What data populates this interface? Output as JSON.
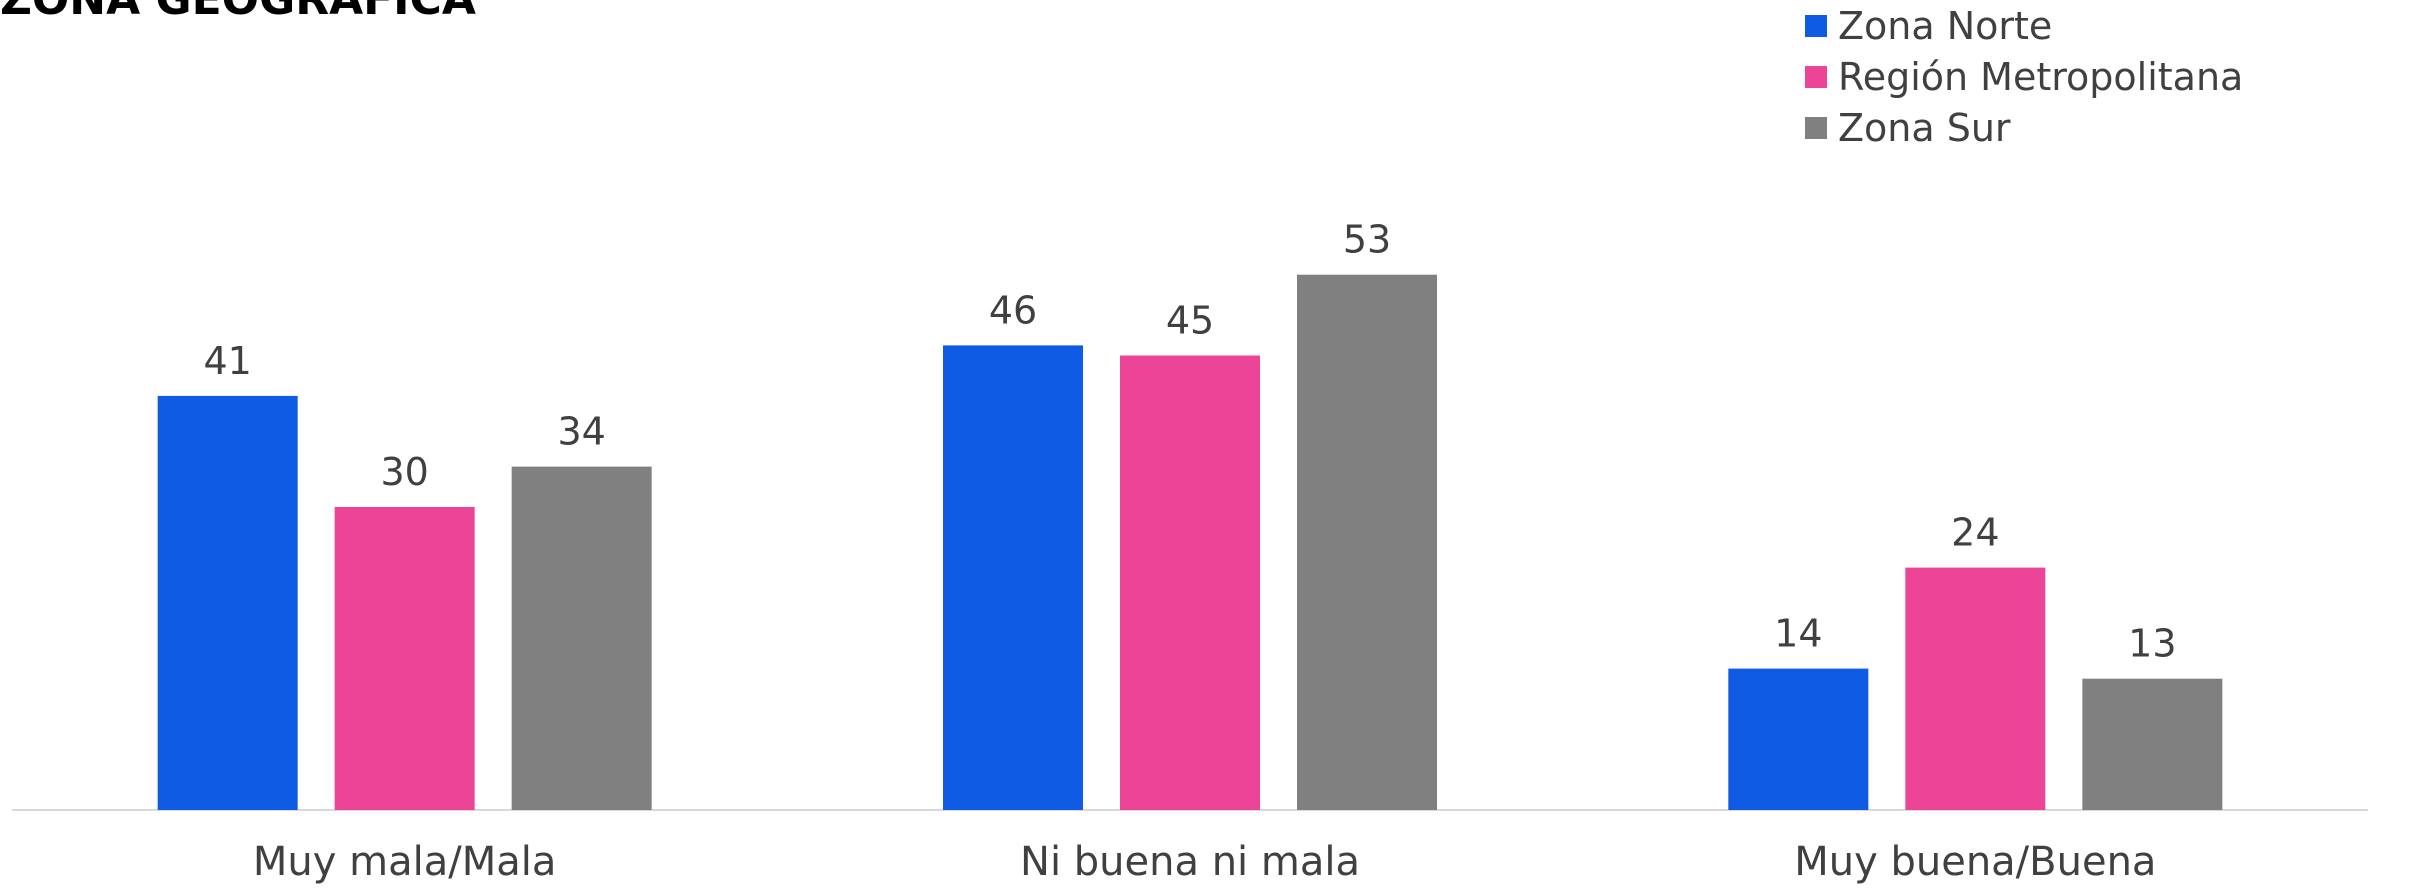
{
  "chart_data": {
    "type": "bar",
    "title": "ZONA GEOGRÁFICA",
    "categories": [
      "Muy mala/Mala",
      "Ni buena ni mala",
      "Muy buena/Buena"
    ],
    "series": [
      {
        "name": "Zona Norte",
        "color": "#0f5be3",
        "values": [
          41,
          46,
          14
        ]
      },
      {
        "name": "Región Metropolitana",
        "color": "#ec4496",
        "values": [
          30,
          45,
          24
        ]
      },
      {
        "name": "Zona Sur",
        "color": "#808080",
        "values": [
          34,
          53,
          13
        ]
      }
    ],
    "ylim": [
      0,
      60
    ],
    "legend": "top-right"
  }
}
